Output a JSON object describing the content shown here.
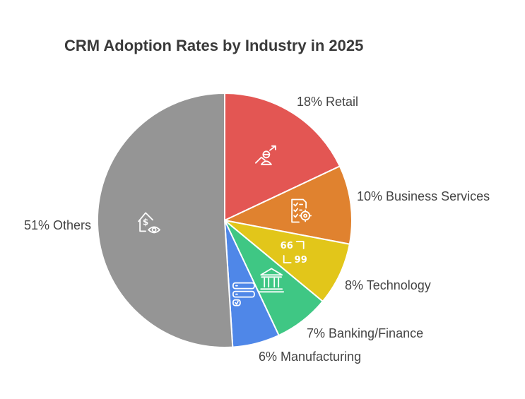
{
  "chart_data": {
    "type": "pie",
    "title": "CRM Adoption Rates by Industry in 2025",
    "slices": [
      {
        "label": "18% Retail",
        "name": "Retail",
        "value": 18,
        "color": "#e35653",
        "icon": "growth-person-icon"
      },
      {
        "label": "10% Business Services",
        "name": "Business Services",
        "value": 10,
        "color": "#e0822f",
        "icon": "checklist-gear-icon"
      },
      {
        "label": "8% Technology",
        "name": "Technology",
        "value": 8,
        "color": "#e2c61a",
        "icon": "code-brackets-icon"
      },
      {
        "label": "7% Banking/Finance",
        "name": "Banking/Finance",
        "value": 7,
        "color": "#3fc784",
        "icon": "bank-icon"
      },
      {
        "label": "6% Manufacturing",
        "name": "Manufacturing",
        "value": 6,
        "color": "#4f87e8",
        "icon": "server-rack-icon"
      },
      {
        "label": "51% Others",
        "name": "Others",
        "value": 51,
        "color": "#959595",
        "icon": "house-dollar-eye-icon"
      }
    ]
  }
}
